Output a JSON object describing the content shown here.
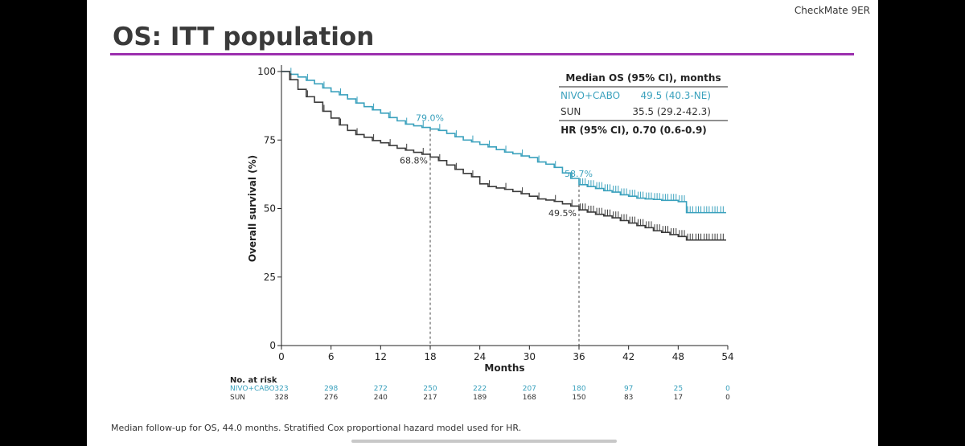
{
  "slide": {
    "tag": "CheckMate 9ER",
    "title": "OS: ITT population",
    "footnote": "Median follow-up for OS, 44.0 months. Stratified Cox proportional hazard model used for HR."
  },
  "colors": {
    "nivo": "#3aa1bd",
    "sun": "#3b3b3b",
    "accent": "#9b2fae"
  },
  "chart_data": {
    "type": "line",
    "title": "",
    "xlabel": "Months",
    "ylabel": "Overall survival (%)",
    "xlim": [
      0,
      54
    ],
    "ylim": [
      0,
      100
    ],
    "xticks": [
      0,
      6,
      12,
      18,
      24,
      30,
      36,
      42,
      48,
      54
    ],
    "yticks": [
      0,
      25,
      50,
      75,
      100
    ],
    "grid": false,
    "series": [
      {
        "name": "NIVO+CABO",
        "color": "#3aa1bd",
        "x": [
          0,
          1,
          2,
          3,
          4,
          5,
          6,
          7,
          8,
          9,
          10,
          11,
          12,
          13,
          14,
          15,
          16,
          17,
          18,
          19,
          20,
          21,
          22,
          23,
          24,
          25,
          26,
          27,
          28,
          29,
          30,
          31,
          32,
          33,
          34,
          35,
          36,
          37,
          38,
          39,
          40,
          41,
          42,
          43,
          44,
          45,
          46,
          47,
          48,
          49,
          50,
          51,
          52,
          53
        ],
        "y": [
          100,
          99.0,
          98.0,
          96.8,
          95.5,
          94.0,
          92.6,
          91.5,
          90.0,
          88.5,
          87.2,
          86.0,
          84.8,
          83.2,
          82.0,
          80.8,
          80.2,
          79.6,
          79.0,
          78.5,
          77.4,
          76.2,
          75.0,
          74.3,
          73.4,
          72.5,
          71.5,
          70.6,
          70.0,
          69.2,
          68.6,
          67.0,
          66.2,
          65.0,
          63.0,
          61.0,
          58.7,
          58.0,
          57.3,
          56.5,
          56.0,
          55.0,
          54.5,
          53.8,
          53.5,
          53.3,
          53.0,
          53.0,
          52.5,
          48.5,
          48.5,
          48.5,
          48.5,
          48.5
        ]
      },
      {
        "name": "SUN",
        "color": "#3b3b3b",
        "x": [
          0,
          1,
          2,
          3,
          4,
          5,
          6,
          7,
          8,
          9,
          10,
          11,
          12,
          13,
          14,
          15,
          16,
          17,
          18,
          19,
          20,
          21,
          22,
          23,
          24,
          25,
          26,
          27,
          28,
          29,
          30,
          31,
          32,
          33,
          34,
          35,
          36,
          37,
          38,
          39,
          40,
          41,
          42,
          43,
          44,
          45,
          46,
          47,
          48,
          49,
          50,
          51,
          52,
          53
        ],
        "y": [
          100,
          97.0,
          93.5,
          90.8,
          88.8,
          85.5,
          83.0,
          80.5,
          78.5,
          77.0,
          76.0,
          74.8,
          74.0,
          73.0,
          72.0,
          71.3,
          70.5,
          69.8,
          68.8,
          67.5,
          65.9,
          64.3,
          62.8,
          61.6,
          59.0,
          58.0,
          57.5,
          57.0,
          56.2,
          55.4,
          54.5,
          53.5,
          53.1,
          52.6,
          51.7,
          50.9,
          49.5,
          48.7,
          47.9,
          47.3,
          46.6,
          45.6,
          44.7,
          43.8,
          43.0,
          41.9,
          41.3,
          40.5,
          39.8,
          38.5,
          38.5,
          38.5,
          38.5,
          38.5
        ]
      }
    ],
    "landmarks": [
      {
        "x": 18,
        "nivo_label": "79.0%",
        "nivo_y": 79.0,
        "sun_label": "68.8%",
        "sun_y": 68.8
      },
      {
        "x": 36,
        "nivo_label": "58.7%",
        "nivo_y": 58.7,
        "sun_label": "49.5%",
        "sun_y": 49.5
      }
    ],
    "median_table": {
      "header": "Median OS (95% CI), months",
      "rows": [
        {
          "arm": "NIVO+CABO",
          "value": "49.5 (40.3-NE)",
          "color": "#3aa1bd"
        },
        {
          "arm": "SUN",
          "value": "35.5 (29.2-42.3)",
          "color": "#333333"
        }
      ],
      "hr": "HR (95% CI), 0.70 (0.6-0.9)"
    },
    "at_risk": {
      "title": "No. at risk",
      "times": [
        0,
        6,
        12,
        18,
        24,
        30,
        36,
        42,
        48,
        54
      ],
      "rows": [
        {
          "arm": "NIVO+CABO",
          "color": "#3aa1bd",
          "values": [
            "323",
            "298",
            "272",
            "250",
            "222",
            "207",
            "180",
            "97",
            "25",
            "0"
          ]
        },
        {
          "arm": "SUN",
          "color": "#333333",
          "values": [
            "328",
            "276",
            "240",
            "217",
            "189",
            "168",
            "150",
            "83",
            "17",
            "0"
          ]
        }
      ]
    }
  }
}
